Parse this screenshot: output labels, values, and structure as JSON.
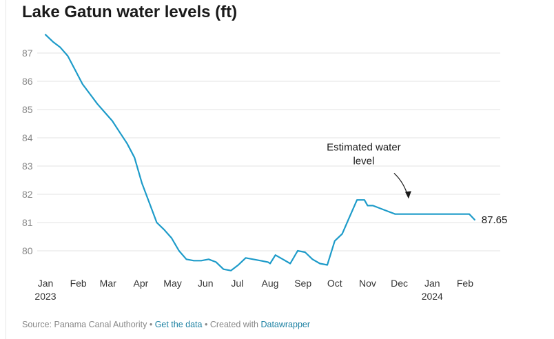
{
  "chart_data": {
    "type": "line",
    "title": "Lake Gatun water levels (ft)",
    "xlabel": "",
    "ylabel": "",
    "ylim": [
      79.2,
      87.8
    ],
    "xlim": [
      "2023-01-01",
      "2024-02-29"
    ],
    "y_ticks": [
      "87",
      "86",
      "85",
      "84",
      "83",
      "82",
      "81",
      "80"
    ],
    "x_ticks": [
      {
        "label": "Jan",
        "year": "2023",
        "date": "2023-01-01"
      },
      {
        "label": "Feb",
        "year": "",
        "date": "2023-02-01"
      },
      {
        "label": "Mar",
        "year": "",
        "date": "2023-03-01"
      },
      {
        "label": "Apr",
        "year": "",
        "date": "2023-04-01"
      },
      {
        "label": "May",
        "year": "",
        "date": "2023-05-01"
      },
      {
        "label": "Jun",
        "year": "",
        "date": "2023-06-01"
      },
      {
        "label": "Jul",
        "year": "",
        "date": "2023-07-01"
      },
      {
        "label": "Aug",
        "year": "",
        "date": "2023-08-01"
      },
      {
        "label": "Sep",
        "year": "",
        "date": "2023-09-01"
      },
      {
        "label": "Oct",
        "year": "",
        "date": "2023-10-01"
      },
      {
        "label": "Nov",
        "year": "",
        "date": "2023-11-01"
      },
      {
        "label": "Dec",
        "year": "",
        "date": "2023-12-01"
      },
      {
        "label": "Jan",
        "year": "2024",
        "date": "2024-01-01"
      },
      {
        "label": "Feb",
        "year": "",
        "date": "2024-02-01"
      }
    ],
    "grid": true,
    "series_color": "#1d9bc9",
    "series": [
      {
        "name": "",
        "x": [
          "2023-01-01",
          "2023-01-08",
          "2023-01-15",
          "2023-01-22",
          "2023-01-29",
          "2023-02-05",
          "2023-02-12",
          "2023-02-19",
          "2023-02-26",
          "2023-03-05",
          "2023-03-12",
          "2023-03-19",
          "2023-03-26",
          "2023-04-02",
          "2023-04-09",
          "2023-04-16",
          "2023-04-23",
          "2023-04-30",
          "2023-05-07",
          "2023-05-14",
          "2023-05-21",
          "2023-05-28",
          "2023-06-04",
          "2023-06-11",
          "2023-06-18",
          "2023-06-25",
          "2023-07-02",
          "2023-07-09",
          "2023-07-16",
          "2023-07-23",
          "2023-07-30",
          "2023-08-01",
          "2023-08-06",
          "2023-08-13",
          "2023-08-20",
          "2023-08-27",
          "2023-09-03",
          "2023-09-10",
          "2023-09-17",
          "2023-09-24",
          "2023-10-01",
          "2023-10-08",
          "2023-10-15",
          "2023-10-22",
          "2023-10-29",
          "2023-11-01",
          "2023-11-06",
          "2023-11-13",
          "2023-11-20",
          "2023-11-27",
          "2023-12-04",
          "2023-12-11",
          "2023-12-18",
          "2023-12-25",
          "2024-01-01",
          "2024-01-08",
          "2024-01-15",
          "2024-01-22",
          "2024-01-29",
          "2024-02-05",
          "2024-02-10"
        ],
        "values": [
          87.65,
          87.4,
          87.2,
          86.9,
          86.4,
          85.9,
          85.55,
          85.2,
          84.9,
          84.6,
          84.2,
          83.8,
          83.3,
          82.4,
          81.7,
          81.0,
          80.75,
          80.45,
          80.0,
          79.7,
          79.65,
          79.65,
          79.7,
          79.6,
          79.35,
          79.3,
          79.5,
          79.75,
          79.7,
          79.65,
          79.6,
          79.55,
          79.85,
          79.7,
          79.55,
          80.0,
          79.95,
          79.7,
          79.55,
          79.5,
          80.35,
          80.6,
          81.2,
          81.8,
          81.8,
          81.6,
          81.6,
          81.5,
          81.4,
          81.3,
          81.3,
          81.3,
          81.3,
          81.3,
          81.3,
          81.3,
          81.3,
          81.3,
          81.3,
          81.3,
          81.1
        ]
      }
    ],
    "end_label": "87.65",
    "annotation": {
      "line1": "Estimated water",
      "line2": "level"
    }
  },
  "footer": {
    "source": "Source: Panama Canal Authority",
    "sep1": " • ",
    "get_data": "Get the data",
    "sep2": " • Created with ",
    "datawrapper": "Datawrapper"
  }
}
